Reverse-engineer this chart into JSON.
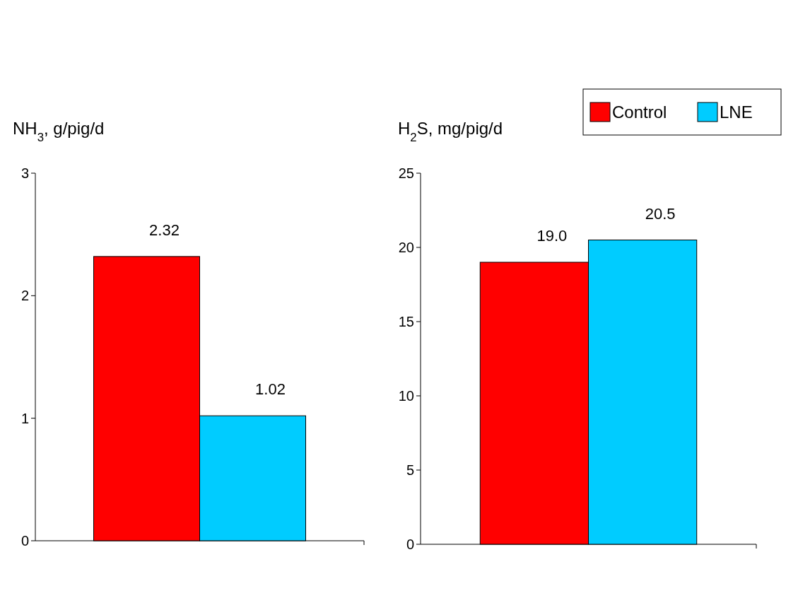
{
  "chart_data": [
    {
      "type": "bar",
      "ylabel": "NH$_{3}$, g/pig/d",
      "categories": [
        null
      ],
      "series": [
        {
          "color": "#ff0000",
          "values": [
            2.32
          ],
          "value_labels": [
            "2.32"
          ]
        },
        {
          "color": "#00ccff",
          "values": [
            1.02
          ],
          "value_labels": [
            "1.02"
          ]
        }
      ],
      "ylim": [
        0,
        3
      ],
      "yticks": [
        0,
        1,
        2,
        3
      ]
    },
    {
      "type": "bar",
      "ylabel": "H$_{2}$S, mg/pig/d",
      "categories": [
        null
      ],
      "series": [
        {
          "name": "Control",
          "color": "#ff0000",
          "values": [
            19.0
          ],
          "value_labels": [
            "19.0"
          ]
        },
        {
          "name": "LNE",
          "color": "#00ccff",
          "values": [
            20.5
          ],
          "value_labels": [
            "20.5"
          ]
        }
      ],
      "ylim": [
        0,
        25
      ],
      "yticks": [
        0,
        5,
        10,
        15,
        20,
        25
      ],
      "legend": "top right"
    }
  ]
}
